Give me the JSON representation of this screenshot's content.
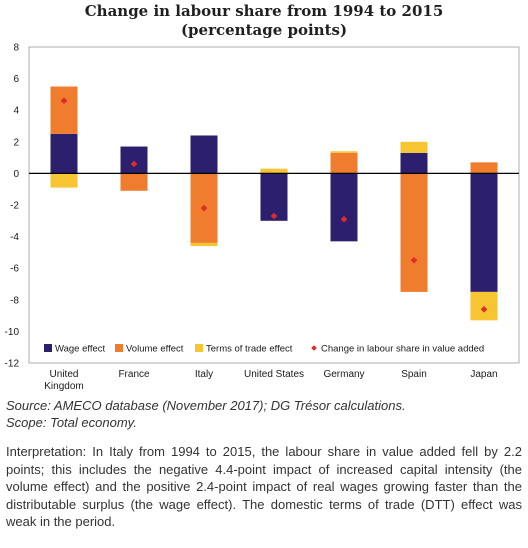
{
  "chart_data": {
    "type": "bar",
    "stacked": true,
    "title": "Change in labour share from 1994 to 2015",
    "subtitle": "(percentage points)",
    "categories": [
      "United Kingdom",
      "France",
      "Italy",
      "United States",
      "Germany",
      "Spain",
      "Japan"
    ],
    "category_labels": [
      [
        "United",
        "Kingdom"
      ],
      [
        "France"
      ],
      [
        "Italy"
      ],
      [
        "United States"
      ],
      [
        "Germany"
      ],
      [
        "Spain"
      ],
      [
        "Japan"
      ]
    ],
    "series": [
      {
        "name": "Wage effect",
        "kind": "bar",
        "color": "#2b1f6e",
        "values": [
          2.5,
          1.7,
          2.4,
          -3.0,
          -4.3,
          1.3,
          -7.5
        ]
      },
      {
        "name": "Volume effect",
        "kind": "bar",
        "color": "#f07c2e",
        "values": [
          3.0,
          -1.1,
          -4.4,
          0.0,
          1.3,
          -7.5,
          0.7
        ]
      },
      {
        "name": "Terms of trade effect",
        "kind": "bar",
        "color": "#f7c531",
        "values": [
          -0.9,
          0.0,
          -0.2,
          0.3,
          0.1,
          0.7,
          -1.8
        ]
      },
      {
        "name": "Change in labour share in value added",
        "kind": "marker",
        "color": "#e02b2b",
        "values": [
          4.6,
          0.6,
          -2.2,
          -2.7,
          -2.9,
          -5.5,
          -8.6
        ]
      }
    ],
    "ylim": [
      -12,
      8
    ],
    "yticks": [
      8,
      6,
      4,
      2,
      0,
      -2,
      -4,
      -6,
      -8,
      -10,
      -12
    ],
    "xlabel": "",
    "ylabel": "",
    "grid": false,
    "legend_position": "bottom-inside"
  },
  "footer": {
    "source": "Source: AMECO database (November 2017); DG Trésor calculations.",
    "scope": "Scope: Total economy.",
    "interpretation": "Interpretation: In Italy from 1994 to 2015, the labour share in value added fell by 2.2 points; this includes the negative 4.4-point impact of increased capital intensity (the volume effect) and the positive 2.4-point impact of real wages growing faster than the distributable surplus (the wage effect). The domestic terms of trade (DTT) effect was weak in the period."
  }
}
